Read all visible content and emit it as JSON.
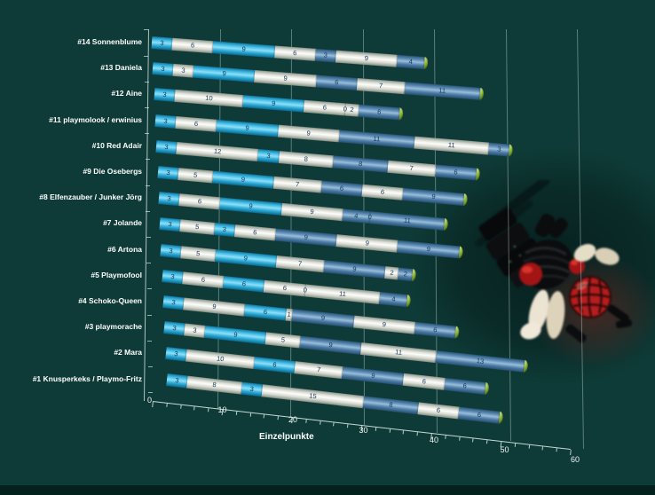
{
  "background": {
    "color": "#0e3b37",
    "bottom_strip_color": "#05211e"
  },
  "chart_data": {
    "type": "bar",
    "stacked": true,
    "orientation": "horizontal",
    "title": "",
    "xlabel": "Einzelpunkte",
    "xlim": [
      0,
      60
    ],
    "x_ticks": [
      0,
      10,
      20,
      30,
      40,
      50,
      60
    ],
    "minor_tick_step": 2,
    "grid": true,
    "legend": false,
    "style": "3d-cylinder",
    "rows_top_to_bottom": [
      {
        "label": "#14 Sonnenblume",
        "segments": [
          3,
          6,
          9,
          6,
          3,
          9,
          4
        ]
      },
      {
        "label": "#13 Daniela",
        "segments": [
          3,
          3,
          9,
          9,
          6,
          7,
          11
        ]
      },
      {
        "label": "#12 Aine",
        "segments": [
          3,
          10,
          9,
          6,
          0,
          2,
          6
        ]
      },
      {
        "label": "#11 playmolook / erwinius",
        "segments": [
          3,
          6,
          9,
          9,
          11,
          11,
          3
        ]
      },
      {
        "label": "#10 Red Adair",
        "segments": [
          3,
          12,
          3,
          8,
          8,
          7,
          6
        ]
      },
      {
        "label": "#9 Die Osebergs",
        "segments": [
          3,
          5,
          9,
          7,
          6,
          6,
          9
        ]
      },
      {
        "label": "#8 Elfenzauber / Junker Jörg",
        "segments": [
          3,
          6,
          9,
          9,
          4,
          0,
          11
        ]
      },
      {
        "label": "#7 Jolande",
        "segments": [
          3,
          5,
          3,
          6,
          9,
          9,
          9
        ]
      },
      {
        "label": "#6 Artona",
        "segments": [
          3,
          5,
          9,
          7,
          9,
          2,
          2
        ]
      },
      {
        "label": "#5 Playmofool",
        "segments": [
          3,
          6,
          6,
          6,
          0,
          11,
          4
        ]
      },
      {
        "label": "#4 Schoko-Queen",
        "segments": [
          3,
          9,
          6,
          1,
          9,
          9,
          6
        ]
      },
      {
        "label": "#3 playmorache",
        "segments": [
          3,
          3,
          9,
          5,
          9,
          11,
          13
        ]
      },
      {
        "label": "#2 Mara",
        "segments": [
          3,
          10,
          6,
          7,
          9,
          6,
          6
        ]
      },
      {
        "label": "#1 Knusperkeks / Playmo-Fritz",
        "segments": [
          3,
          8,
          3,
          15,
          8,
          6,
          6
        ]
      }
    ],
    "segment_color_pattern": [
      "cyan",
      "white",
      "cyan",
      "white",
      "steel",
      "white",
      "steel"
    ],
    "colors": {
      "cyan": "#2fb4e6",
      "white": "#f1f0ea",
      "steel": "#5084b2",
      "end_cap_green": "#9ccb3b",
      "bar_value_text": "#16355a",
      "axis_text": "#ffffff",
      "gridline": "rgba(210,228,224,0.40)"
    }
  },
  "decoration": {
    "figure_alt": "black toy figure with red gloves and red grid ball, motion blurred"
  }
}
